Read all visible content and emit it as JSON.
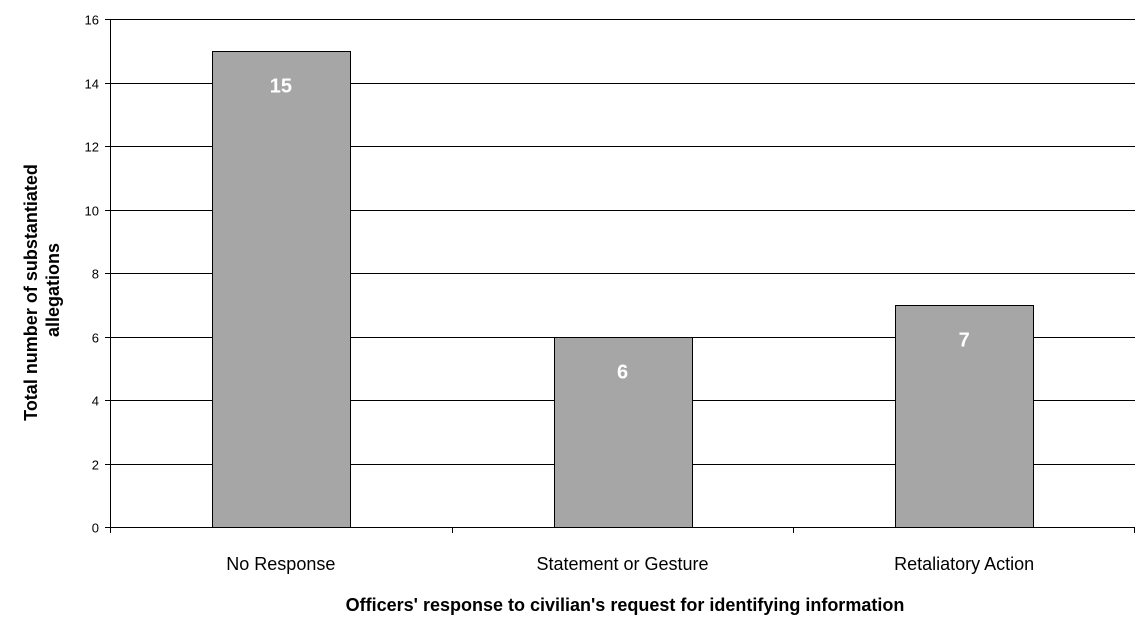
{
  "chart_data": {
    "type": "bar",
    "title": "",
    "xlabel": "Officers' response to civilian's request for identifying information",
    "ylabel_lines": [
      "Total number of substantiated",
      "allegations"
    ],
    "categories": [
      "No Response",
      "Statement or Gesture",
      "Retaliatory Action"
    ],
    "values": [
      15,
      6,
      7
    ],
    "data_labels": [
      "15",
      "6",
      "7"
    ],
    "ylim": [
      0,
      16
    ],
    "yticks": [
      "0",
      "2",
      "4",
      "6",
      "8",
      "10",
      "12",
      "14",
      "16"
    ],
    "grid": "horizontal",
    "legend": "none",
    "colors": {
      "bar_fill": "#a6a6a6",
      "bar_stroke": "#000000",
      "grid": "#000000",
      "data_label": "#ffffff"
    }
  }
}
